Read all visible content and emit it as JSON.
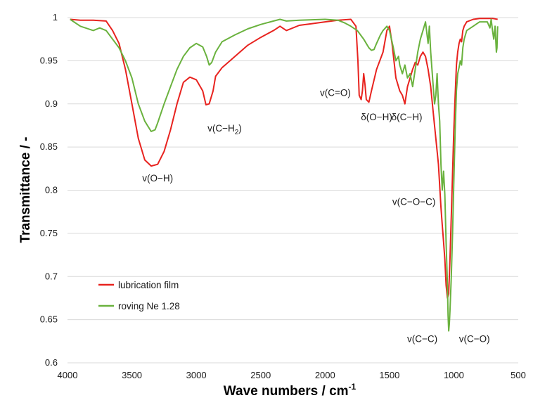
{
  "chart_data": {
    "type": "line",
    "xlabel": "Wave numbers / cm",
    "xlabel_sup": "-1",
    "ylabel": "Transmittance / -",
    "xlim": [
      4000,
      500
    ],
    "ylim": [
      0.6,
      1.0
    ],
    "x_reversed": true,
    "grid": "horizontal",
    "legend_position": "lower-left",
    "x_ticks": [
      "4000",
      "3500",
      "3000",
      "2500",
      "2000",
      "1500",
      "1000",
      "500"
    ],
    "y_ticks": [
      "0.6",
      "0.65",
      "0.7",
      "0.75",
      "0.8",
      "0.85",
      "0.9",
      "0.95",
      "1"
    ],
    "series": [
      {
        "name": "lubrication film",
        "color": "#e8231f",
        "points": [
          [
            3980,
            0.998
          ],
          [
            3900,
            0.997
          ],
          [
            3800,
            0.997
          ],
          [
            3700,
            0.996
          ],
          [
            3650,
            0.985
          ],
          [
            3600,
            0.97
          ],
          [
            3550,
            0.94
          ],
          [
            3500,
            0.9
          ],
          [
            3450,
            0.86
          ],
          [
            3400,
            0.835
          ],
          [
            3350,
            0.828
          ],
          [
            3300,
            0.83
          ],
          [
            3250,
            0.845
          ],
          [
            3200,
            0.87
          ],
          [
            3150,
            0.9
          ],
          [
            3100,
            0.925
          ],
          [
            3050,
            0.931
          ],
          [
            3000,
            0.928
          ],
          [
            2950,
            0.915
          ],
          [
            2925,
            0.899
          ],
          [
            2900,
            0.9
          ],
          [
            2870,
            0.915
          ],
          [
            2850,
            0.932
          ],
          [
            2800,
            0.942
          ],
          [
            2700,
            0.955
          ],
          [
            2600,
            0.968
          ],
          [
            2500,
            0.977
          ],
          [
            2400,
            0.985
          ],
          [
            2350,
            0.99
          ],
          [
            2300,
            0.985
          ],
          [
            2200,
            0.991
          ],
          [
            2100,
            0.993
          ],
          [
            2000,
            0.995
          ],
          [
            1900,
            0.997
          ],
          [
            1800,
            0.998
          ],
          [
            1760,
            0.99
          ],
          [
            1745,
            0.95
          ],
          [
            1735,
            0.91
          ],
          [
            1720,
            0.905
          ],
          [
            1710,
            0.915
          ],
          [
            1700,
            0.935
          ],
          [
            1690,
            0.922
          ],
          [
            1680,
            0.905
          ],
          [
            1660,
            0.902
          ],
          [
            1640,
            0.915
          ],
          [
            1600,
            0.94
          ],
          [
            1550,
            0.96
          ],
          [
            1520,
            0.985
          ],
          [
            1500,
            0.99
          ],
          [
            1480,
            0.97
          ],
          [
            1450,
            0.93
          ],
          [
            1420,
            0.915
          ],
          [
            1400,
            0.91
          ],
          [
            1380,
            0.9
          ],
          [
            1360,
            0.92
          ],
          [
            1340,
            0.93
          ],
          [
            1320,
            0.94
          ],
          [
            1300,
            0.948
          ],
          [
            1280,
            0.945
          ],
          [
            1260,
            0.955
          ],
          [
            1240,
            0.96
          ],
          [
            1220,
            0.955
          ],
          [
            1200,
            0.94
          ],
          [
            1180,
            0.92
          ],
          [
            1160,
            0.89
          ],
          [
            1140,
            0.86
          ],
          [
            1120,
            0.83
          ],
          [
            1100,
            0.78
          ],
          [
            1090,
            0.76
          ],
          [
            1080,
            0.74
          ],
          [
            1070,
            0.72
          ],
          [
            1060,
            0.69
          ],
          [
            1050,
            0.675
          ],
          [
            1040,
            0.68
          ],
          [
            1030,
            0.72
          ],
          [
            1020,
            0.77
          ],
          [
            1010,
            0.82
          ],
          [
            1000,
            0.87
          ],
          [
            990,
            0.91
          ],
          [
            980,
            0.945
          ],
          [
            970,
            0.96
          ],
          [
            960,
            0.97
          ],
          [
            950,
            0.975
          ],
          [
            940,
            0.972
          ],
          [
            930,
            0.985
          ],
          [
            920,
            0.99
          ],
          [
            900,
            0.995
          ],
          [
            850,
            0.998
          ],
          [
            800,
            0.999
          ],
          [
            700,
            0.999
          ],
          [
            660,
            0.998
          ]
        ]
      },
      {
        "name": "roving Ne 1.28",
        "color": "#6ab23e",
        "points": [
          [
            3980,
            0.998
          ],
          [
            3900,
            0.99
          ],
          [
            3800,
            0.985
          ],
          [
            3750,
            0.988
          ],
          [
            3700,
            0.985
          ],
          [
            3650,
            0.975
          ],
          [
            3600,
            0.965
          ],
          [
            3550,
            0.95
          ],
          [
            3500,
            0.93
          ],
          [
            3450,
            0.9
          ],
          [
            3400,
            0.88
          ],
          [
            3350,
            0.868
          ],
          [
            3320,
            0.87
          ],
          [
            3300,
            0.878
          ],
          [
            3250,
            0.9
          ],
          [
            3200,
            0.92
          ],
          [
            3150,
            0.94
          ],
          [
            3100,
            0.955
          ],
          [
            3050,
            0.965
          ],
          [
            3000,
            0.97
          ],
          [
            2950,
            0.966
          ],
          [
            2920,
            0.955
          ],
          [
            2900,
            0.945
          ],
          [
            2880,
            0.948
          ],
          [
            2850,
            0.96
          ],
          [
            2800,
            0.972
          ],
          [
            2700,
            0.98
          ],
          [
            2600,
            0.987
          ],
          [
            2500,
            0.992
          ],
          [
            2400,
            0.996
          ],
          [
            2350,
            0.998
          ],
          [
            2300,
            0.996
          ],
          [
            2200,
            0.997
          ],
          [
            2000,
            0.998
          ],
          [
            1900,
            0.997
          ],
          [
            1850,
            0.994
          ],
          [
            1800,
            0.99
          ],
          [
            1750,
            0.985
          ],
          [
            1700,
            0.975
          ],
          [
            1660,
            0.965
          ],
          [
            1640,
            0.962
          ],
          [
            1620,
            0.963
          ],
          [
            1600,
            0.97
          ],
          [
            1570,
            0.98
          ],
          [
            1550,
            0.985
          ],
          [
            1520,
            0.99
          ],
          [
            1500,
            0.985
          ],
          [
            1470,
            0.965
          ],
          [
            1450,
            0.95
          ],
          [
            1430,
            0.955
          ],
          [
            1420,
            0.945
          ],
          [
            1400,
            0.935
          ],
          [
            1380,
            0.945
          ],
          [
            1360,
            0.93
          ],
          [
            1340,
            0.935
          ],
          [
            1320,
            0.92
          ],
          [
            1300,
            0.94
          ],
          [
            1280,
            0.96
          ],
          [
            1260,
            0.975
          ],
          [
            1240,
            0.985
          ],
          [
            1220,
            0.995
          ],
          [
            1200,
            0.97
          ],
          [
            1190,
            0.99
          ],
          [
            1180,
            0.96
          ],
          [
            1170,
            0.94
          ],
          [
            1160,
            0.92
          ],
          [
            1150,
            0.9
          ],
          [
            1140,
            0.91
          ],
          [
            1130,
            0.935
          ],
          [
            1120,
            0.9
          ],
          [
            1110,
            0.88
          ],
          [
            1100,
            0.83
          ],
          [
            1090,
            0.8
          ],
          [
            1080,
            0.822
          ],
          [
            1070,
            0.795
          ],
          [
            1060,
            0.74
          ],
          [
            1050,
            0.69
          ],
          [
            1045,
            0.655
          ],
          [
            1040,
            0.637
          ],
          [
            1035,
            0.645
          ],
          [
            1030,
            0.66
          ],
          [
            1020,
            0.7
          ],
          [
            1010,
            0.75
          ],
          [
            1000,
            0.81
          ],
          [
            990,
            0.87
          ],
          [
            980,
            0.915
          ],
          [
            970,
            0.935
          ],
          [
            960,
            0.942
          ],
          [
            950,
            0.95
          ],
          [
            940,
            0.945
          ],
          [
            930,
            0.965
          ],
          [
            920,
            0.975
          ],
          [
            900,
            0.985
          ],
          [
            850,
            0.99
          ],
          [
            800,
            0.995
          ],
          [
            740,
            0.995
          ],
          [
            720,
            0.988
          ],
          [
            710,
            0.998
          ],
          [
            700,
            0.985
          ],
          [
            690,
            0.975
          ],
          [
            680,
            0.99
          ],
          [
            670,
            0.96
          ],
          [
            665,
            0.965
          ],
          [
            660,
            0.99
          ]
        ]
      }
    ],
    "annotations": [
      {
        "text": "v(O−H)",
        "x": 3300,
        "y": 0.81
      },
      {
        "text": "v(C−H",
        "sub": "2",
        "suffix": ")",
        "x": 2780,
        "y": 0.868
      },
      {
        "text": "v(C=O)",
        "x": 1920,
        "y": 0.909
      },
      {
        "text": "δ(O−H)",
        "x": 1600,
        "y": 0.881
      },
      {
        "text": "δ(C−H)",
        "x": 1365,
        "y": 0.881
      },
      {
        "text": "v(C−O−C)",
        "x": 1310,
        "y": 0.783
      },
      {
        "text": "v(C−C)",
        "x": 1245,
        "y": 0.624
      },
      {
        "text": "v(C−O)",
        "x": 840,
        "y": 0.624
      }
    ]
  }
}
